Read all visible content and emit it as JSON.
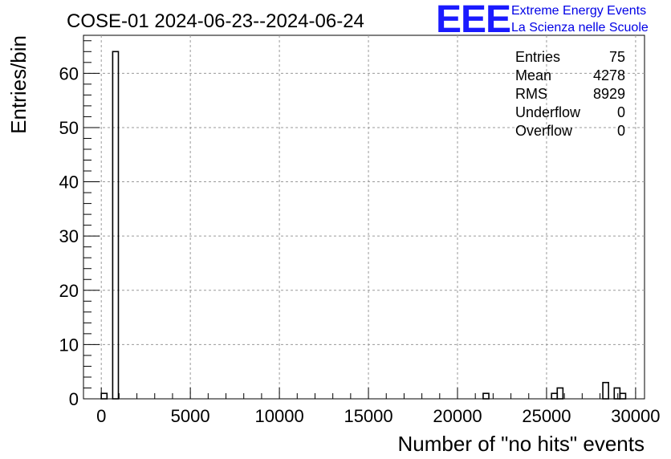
{
  "chart_data": {
    "type": "bar",
    "title": "COSE-01 2024-06-23--2024-06-24",
    "xlabel": "Number of \"no hits\" events",
    "ylabel": "Entries/bin",
    "xlim": [
      -1000,
      30500
    ],
    "ylim": [
      0,
      67
    ],
    "x_ticks": [
      0,
      5000,
      10000,
      15000,
      20000,
      25000,
      30000
    ],
    "y_ticks": [
      0,
      10,
      20,
      30,
      40,
      50,
      60
    ],
    "grid": true,
    "bin_width": 320,
    "bins": [
      {
        "x0": 0,
        "x1": 320,
        "count": 1
      },
      {
        "x0": 640,
        "x1": 960,
        "count": 64
      },
      {
        "x0": 21440,
        "x1": 21760,
        "count": 1
      },
      {
        "x0": 25280,
        "x1": 25600,
        "count": 1
      },
      {
        "x0": 25600,
        "x1": 25920,
        "count": 2
      },
      {
        "x0": 28160,
        "x1": 28480,
        "count": 3
      },
      {
        "x0": 28800,
        "x1": 29120,
        "count": 2
      },
      {
        "x0": 29120,
        "x1": 29440,
        "count": 1
      }
    ]
  },
  "stats_box": [
    {
      "label": "Entries",
      "value": "75"
    },
    {
      "label": "Mean",
      "value": "4278"
    },
    {
      "label": "RMS",
      "value": "8929"
    },
    {
      "label": "Underflow",
      "value": "0"
    },
    {
      "label": "Overflow",
      "value": "0"
    }
  ],
  "logo": {
    "mark": "EEE",
    "line1": "Extreme Energy Events",
    "line2": "La Scienza nelle Scuole",
    "color": "#1a1aff"
  }
}
